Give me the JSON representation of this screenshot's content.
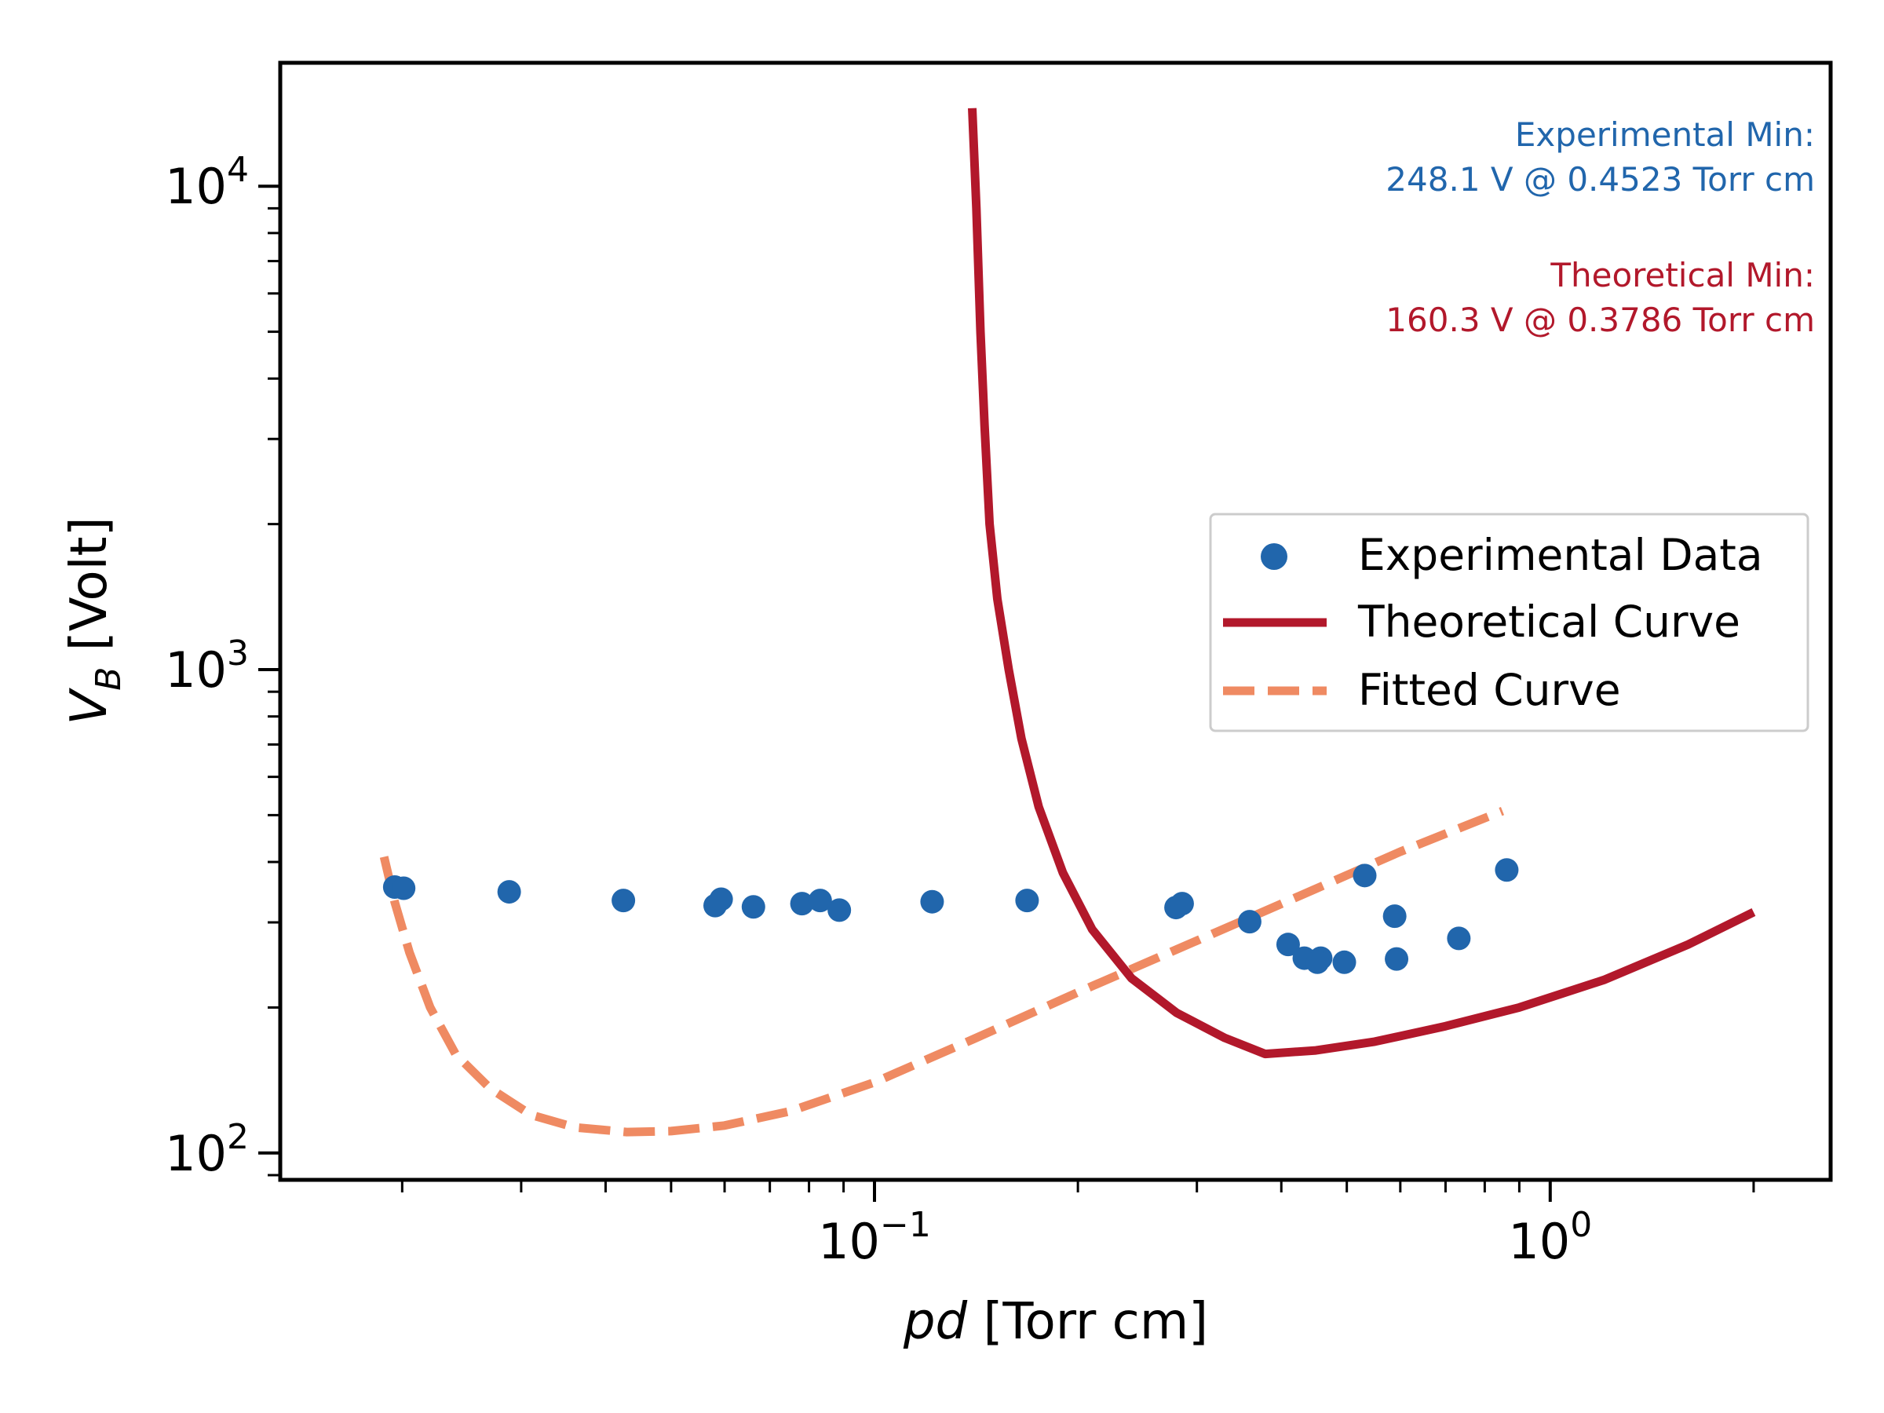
{
  "colors": {
    "experimental": "#2166ac",
    "theoretical": "#b2182b",
    "fitted": "#ef8a62",
    "axis": "#000000"
  },
  "annotations": {
    "experimental": {
      "label": "Experimental Min:",
      "value": "248.1 V @ 0.4523 Torr cm"
    },
    "theoretical": {
      "label": "Theoretical Min:",
      "value": "160.3 V @ 0.3786 Torr cm"
    }
  },
  "chart_data": {
    "type": "scatter",
    "xlabel_italic": "pd",
    "xlabel_rest": " [Torr cm]",
    "ylabel_main": "V",
    "ylabel_sub": "B",
    "ylabel_rest": " [Volt]",
    "xscale": "log",
    "yscale": "log",
    "xlim": [
      0.0132,
      2.6
    ],
    "ylim": [
      88,
      18000
    ],
    "grid": false,
    "legend_position": "center-right",
    "x_ticks": [
      {
        "base": "10",
        "exp": "−1",
        "value": 0.1
      },
      {
        "base": "10",
        "exp": "0",
        "value": 1
      }
    ],
    "y_ticks": [
      {
        "base": "10",
        "exp": "2",
        "value": 100
      },
      {
        "base": "10",
        "exp": "3",
        "value": 1000
      },
      {
        "base": "10",
        "exp": "4",
        "value": 10000
      }
    ],
    "legend": [
      {
        "label": "Experimental Data",
        "style": "marker",
        "series": "experimental"
      },
      {
        "label": "Theoretical Curve",
        "style": "solid",
        "series": "theoretical"
      },
      {
        "label": "Fitted Curve",
        "style": "dashed",
        "series": "fitted"
      }
    ],
    "series": [
      {
        "name": "Experimental Data",
        "key": "experimental",
        "kind": "scatter",
        "points": [
          [
            0.0195,
            355
          ],
          [
            0.0201,
            353
          ],
          [
            0.0288,
            347
          ],
          [
            0.0425,
            333
          ],
          [
            0.0581,
            325
          ],
          [
            0.0593,
            335
          ],
          [
            0.0662,
            323
          ],
          [
            0.0781,
            328
          ],
          [
            0.0831,
            333
          ],
          [
            0.0887,
            318
          ],
          [
            0.1217,
            331
          ],
          [
            0.1682,
            333
          ],
          [
            0.2794,
            322
          ],
          [
            0.2853,
            328
          ],
          [
            0.3591,
            301
          ],
          [
            0.4094,
            270
          ],
          [
            0.4326,
            253
          ],
          [
            0.4575,
            253
          ],
          [
            0.4523,
            248.1
          ],
          [
            0.4958,
            248.1
          ],
          [
            0.5315,
            375
          ],
          [
            0.5886,
            309
          ],
          [
            0.5924,
            252
          ],
          [
            0.7324,
            278
          ],
          [
            0.8623,
            385
          ]
        ]
      },
      {
        "name": "Theoretical Curve",
        "key": "theoretical",
        "kind": "line",
        "points": [
          [
            0.1395,
            14500
          ],
          [
            0.1415,
            9000
          ],
          [
            0.1435,
            5000
          ],
          [
            0.1455,
            3200
          ],
          [
            0.148,
            2000
          ],
          [
            0.152,
            1400
          ],
          [
            0.158,
            1000
          ],
          [
            0.165,
            720
          ],
          [
            0.175,
            520
          ],
          [
            0.19,
            380
          ],
          [
            0.21,
            290
          ],
          [
            0.24,
            230
          ],
          [
            0.28,
            195
          ],
          [
            0.33,
            173
          ],
          [
            0.3786,
            160.3
          ],
          [
            0.45,
            163
          ],
          [
            0.55,
            170
          ],
          [
            0.7,
            183
          ],
          [
            0.9,
            200
          ],
          [
            1.2,
            228
          ],
          [
            1.6,
            270
          ],
          [
            2.0,
            315
          ]
        ]
      },
      {
        "name": "Fitted Curve",
        "key": "fitted",
        "kind": "dashed",
        "points": [
          [
            0.0188,
            410
          ],
          [
            0.0195,
            330
          ],
          [
            0.0205,
            260
          ],
          [
            0.022,
            200
          ],
          [
            0.024,
            160
          ],
          [
            0.027,
            136
          ],
          [
            0.031,
            120
          ],
          [
            0.036,
            113
          ],
          [
            0.043,
            110.5
          ],
          [
            0.05,
            111
          ],
          [
            0.06,
            114
          ],
          [
            0.075,
            122
          ],
          [
            0.1,
            140
          ],
          [
            0.14,
            172
          ],
          [
            0.2,
            215
          ],
          [
            0.3,
            275
          ],
          [
            0.45,
            352
          ],
          [
            0.6,
            420
          ],
          [
            0.85,
            510
          ]
        ]
      }
    ]
  }
}
